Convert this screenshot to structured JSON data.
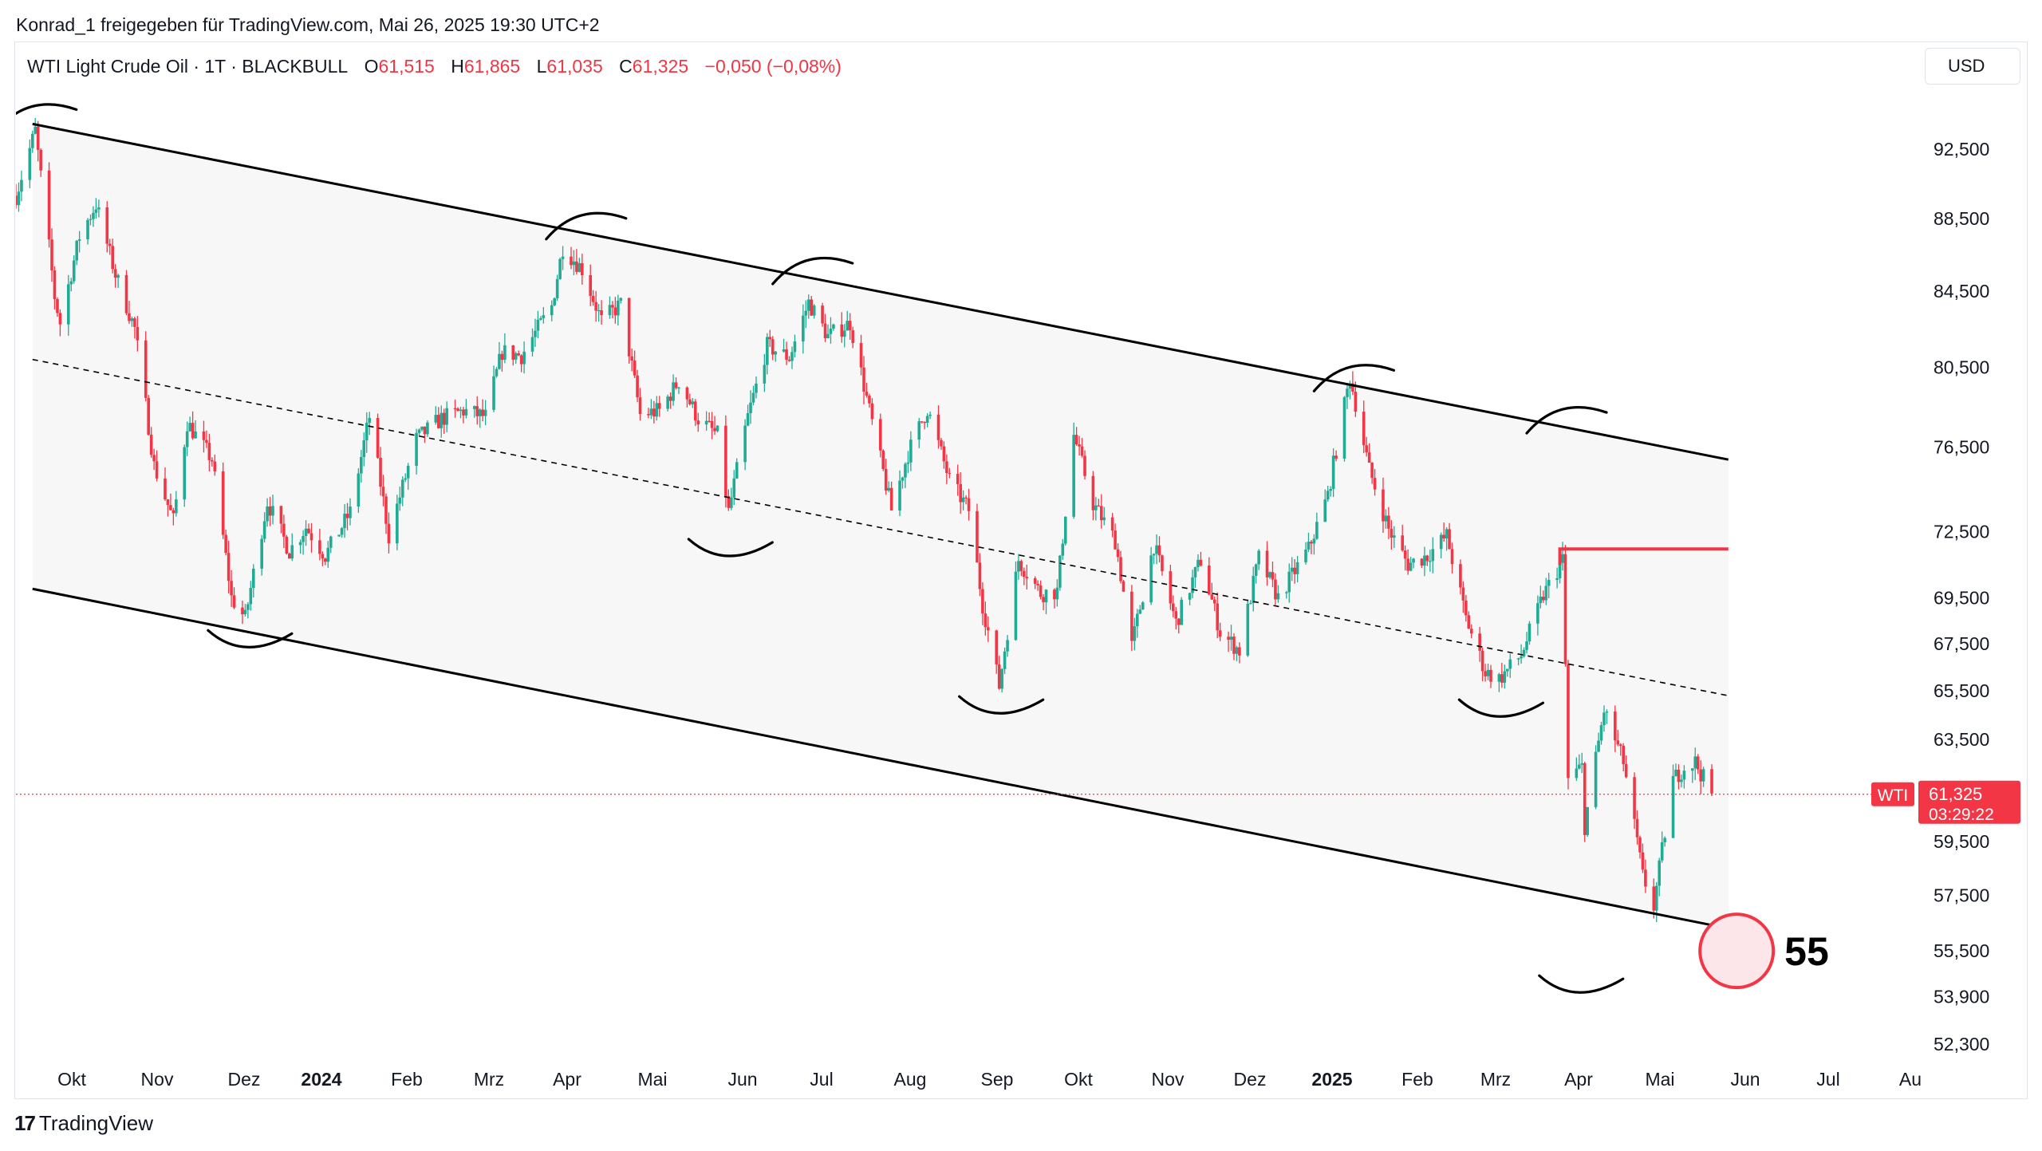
{
  "header": {
    "shared_by": "Konrad_1 freigegeben für TradingView.com, Mai 26, 2025 19:30 UTC+2"
  },
  "legend": {
    "symbol": "WTI Light Crude Oil · 1T · BLACKBULL",
    "o_label": "O",
    "o_value": "61,515",
    "h_label": "H",
    "h_value": "61,865",
    "l_label": "L",
    "l_value": "61,035",
    "c_label": "C",
    "c_value": "61,325",
    "change": "−0,050 (−0,08%)"
  },
  "currency_button": "USD",
  "footer": {
    "brand": "TradingView",
    "logo_icon": "tradingview-logo-icon"
  },
  "colors": {
    "up": "#22ab94",
    "down": "#f23645",
    "channel_fill": "#f7f7f7",
    "marker_fill": "#fde6e9"
  },
  "chart_data": {
    "type": "candlestick",
    "instrument": "WTI Light Crude Oil",
    "interval": "1T",
    "broker": "BLACKBULL",
    "y_axis": {
      "ticks": [
        "92,500",
        "88,500",
        "84,500",
        "80,500",
        "76,500",
        "72,500",
        "69,500",
        "67,500",
        "65,500",
        "63,500",
        "59,500",
        "57,500",
        "55,500",
        "53,900",
        "52,300"
      ],
      "tick_values": [
        92.5,
        88.5,
        84.5,
        80.5,
        76.5,
        72.5,
        69.5,
        67.5,
        65.5,
        63.5,
        59.5,
        57.5,
        55.5,
        53.9,
        52.3
      ],
      "scale": "log"
    },
    "x_axis": {
      "labels": [
        "Okt",
        "Nov",
        "Dez",
        "2024",
        "Feb",
        "Mrz",
        "Apr",
        "Mai",
        "Jun",
        "Jul",
        "Aug",
        "Sep",
        "Okt",
        "Nov",
        "Dez",
        "2025",
        "Feb",
        "Mrz",
        "Apr",
        "Mai",
        "Jun",
        "Jul",
        "Au"
      ],
      "bold": [
        "2024",
        "2025"
      ]
    },
    "price_series": [
      [
        "2023-09-20",
        89.8
      ],
      [
        "2023-09-27",
        93.6
      ],
      [
        "2023-10-04",
        84.2
      ],
      [
        "2023-10-06",
        82.8
      ],
      [
        "2023-10-13",
        87.5
      ],
      [
        "2023-10-19",
        89.3
      ],
      [
        "2023-10-26",
        85.4
      ],
      [
        "2023-11-02",
        82.5
      ],
      [
        "2023-11-09",
        75.6
      ],
      [
        "2023-11-16",
        73.0
      ],
      [
        "2023-11-21",
        77.7
      ],
      [
        "2023-11-30",
        75.9
      ],
      [
        "2023-12-07",
        69.5
      ],
      [
        "2023-12-12",
        68.6
      ],
      [
        "2023-12-20",
        73.9
      ],
      [
        "2023-12-28",
        71.6
      ],
      [
        "2024-01-03",
        72.7
      ],
      [
        "2024-01-10",
        71.4
      ],
      [
        "2024-01-19",
        73.4
      ],
      [
        "2024-01-26",
        78.0
      ],
      [
        "2024-02-02",
        72.3
      ],
      [
        "2024-02-12",
        76.9
      ],
      [
        "2024-02-21",
        77.9
      ],
      [
        "2024-02-29",
        78.3
      ],
      [
        "2024-03-08",
        78.0
      ],
      [
        "2024-03-14",
        81.3
      ],
      [
        "2024-03-21",
        81.1
      ],
      [
        "2024-04-01",
        83.7
      ],
      [
        "2024-04-05",
        86.9
      ],
      [
        "2024-04-12",
        85.7
      ],
      [
        "2024-04-19",
        82.9
      ],
      [
        "2024-04-26",
        83.8
      ],
      [
        "2024-05-03",
        78.1
      ],
      [
        "2024-05-10",
        78.3
      ],
      [
        "2024-05-17",
        79.8
      ],
      [
        "2024-05-24",
        77.9
      ],
      [
        "2024-05-31",
        77.1
      ],
      [
        "2024-06-04",
        73.4
      ],
      [
        "2024-06-11",
        78.0
      ],
      [
        "2024-06-18",
        81.6
      ],
      [
        "2024-06-26",
        81.0
      ],
      [
        "2024-07-03",
        83.9
      ],
      [
        "2024-07-10",
        82.1
      ],
      [
        "2024-07-18",
        82.8
      ],
      [
        "2024-07-25",
        78.3
      ],
      [
        "2024-08-02",
        73.5
      ],
      [
        "2024-08-08",
        76.2
      ],
      [
        "2024-08-15",
        78.4
      ],
      [
        "2024-08-23",
        74.9
      ],
      [
        "2024-08-30",
        73.5
      ],
      [
        "2024-09-04",
        69.2
      ],
      [
        "2024-09-10",
        65.7
      ],
      [
        "2024-09-17",
        71.2
      ],
      [
        "2024-09-25",
        69.7
      ],
      [
        "2024-10-01",
        69.8
      ],
      [
        "2024-10-07",
        77.1
      ],
      [
        "2024-10-14",
        73.8
      ],
      [
        "2024-10-22",
        72.1
      ],
      [
        "2024-10-28",
        67.4
      ],
      [
        "2024-11-05",
        71.9
      ],
      [
        "2024-11-13",
        68.4
      ],
      [
        "2024-11-22",
        71.2
      ],
      [
        "2024-11-29",
        68.0
      ],
      [
        "2024-12-06",
        67.2
      ],
      [
        "2024-12-13",
        71.3
      ],
      [
        "2024-12-20",
        69.5
      ],
      [
        "2024-12-31",
        71.7
      ],
      [
        "2025-01-07",
        74.2
      ],
      [
        "2025-01-15",
        80.0
      ],
      [
        "2025-01-22",
        75.4
      ],
      [
        "2025-01-29",
        72.6
      ],
      [
        "2025-02-05",
        71.0
      ],
      [
        "2025-02-12",
        71.4
      ],
      [
        "2025-02-19",
        72.3
      ],
      [
        "2025-02-26",
        68.6
      ],
      [
        "2025-03-05",
        66.3
      ],
      [
        "2025-03-10",
        66.0
      ],
      [
        "2025-03-18",
        67.0
      ],
      [
        "2025-03-26",
        69.6
      ],
      [
        "2025-04-02",
        71.2
      ],
      [
        "2025-04-04",
        61.9
      ],
      [
        "2025-04-09",
        62.4
      ],
      [
        "2025-04-10",
        60.1
      ],
      [
        "2025-04-17",
        64.7
      ],
      [
        "2025-04-24",
        62.6
      ],
      [
        "2025-05-01",
        58.2
      ],
      [
        "2025-05-05",
        57.1
      ],
      [
        "2025-05-12",
        61.9
      ],
      [
        "2025-05-16",
        62.4
      ],
      [
        "2025-05-20",
        62.6
      ],
      [
        "2025-05-26",
        61.3
      ]
    ],
    "last_price": {
      "symbol": "WTI",
      "price": "61,325",
      "countdown": "03:29:22"
    },
    "annotations": {
      "upper_channel": [
        [
          "2023-09-26",
          94.0
        ],
        [
          "2025-06-01",
          75.9
        ]
      ],
      "mid_channel": [
        [
          "2023-09-26",
          80.9
        ],
        [
          "2025-06-01",
          65.3
        ]
      ],
      "lower_channel": [
        [
          "2023-09-26",
          69.9
        ],
        [
          "2025-06-01",
          56.3
        ]
      ],
      "horizontal_level": {
        "start": "2025-04-01",
        "end": "2025-06-01",
        "price": 71.7
      },
      "target_circle": {
        "date": "2025-06-04",
        "price": 55.5
      },
      "target_label": "55",
      "highs_marked": [
        "2023-09-26",
        "2024-04-12",
        "2024-07-03",
        "2025-01-15",
        "2025-04-02"
      ],
      "lows_marked": [
        "2023-12-13",
        "2024-06-04",
        "2024-09-10",
        "2025-03-10",
        "2025-04-08"
      ]
    }
  }
}
